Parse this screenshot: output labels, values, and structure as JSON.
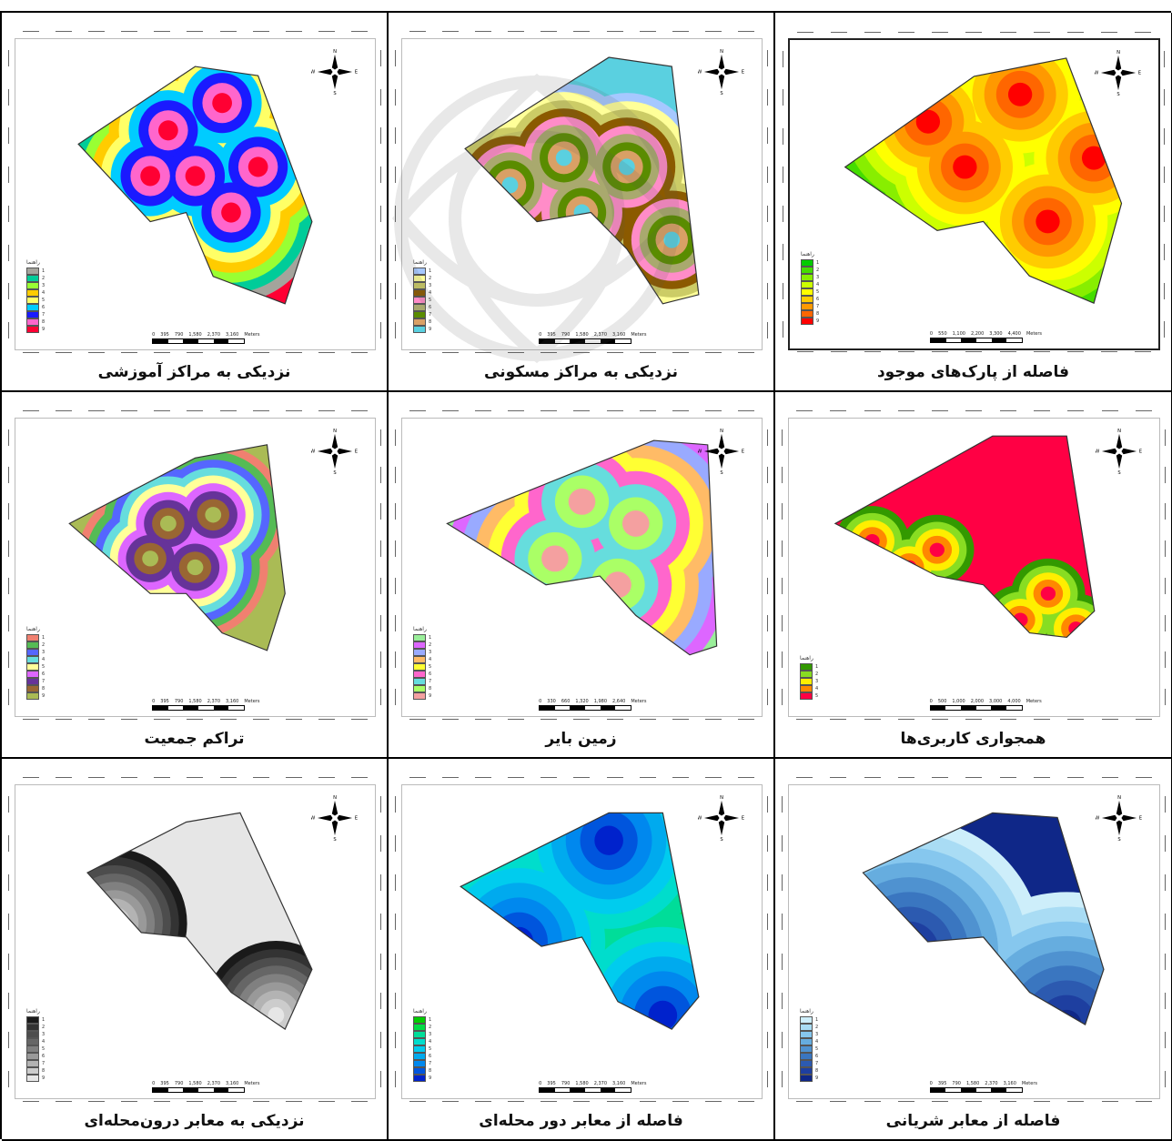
{
  "colors": {
    "education": [
      "#a4a49c",
      "#00cc99",
      "#99ff33",
      "#ffcc00",
      "#ffff66",
      "#00ccff",
      "#1a1aff",
      "#ff66cc",
      "#ff0033"
    ],
    "residential": [
      "#a6c8ff",
      "#ffff99",
      "#cccc66",
      "#8b5a00",
      "#ff8cc8",
      "#a9a96e",
      "#5a8c00",
      "#d9a066",
      "#5ad0e0"
    ],
    "parks": [
      "#00cc00",
      "#44dd00",
      "#88ee00",
      "#ccff00",
      "#ffff00",
      "#ffcc00",
      "#ff9900",
      "#ff6600",
      "#ff0000"
    ],
    "population": [
      "#f08070",
      "#55bb55",
      "#5566ff",
      "#66dddd",
      "#ffff99",
      "#dd66ff",
      "#663399",
      "#996633",
      "#aabb55"
    ],
    "vacant": [
      "#99ee99",
      "#dd66ff",
      "#99aaff",
      "#ffbb66",
      "#ffff33",
      "#ff66cc",
      "#66dddd",
      "#aaff66",
      "#f4a0a0"
    ],
    "landuse": [
      "#339900",
      "#88dd22",
      "#ffee00",
      "#ff8800",
      "#ff0044"
    ],
    "grayscale": [
      "#1a1a1a",
      "#333333",
      "#4d4d4d",
      "#666666",
      "#808080",
      "#999999",
      "#b3b3b3",
      "#cccccc",
      "#e6e6e6"
    ],
    "local_roads": [
      "#00cc00",
      "#00dd44",
      "#00dd99",
      "#00ddcc",
      "#00ccee",
      "#00aaee",
      "#0088ee",
      "#0055dd",
      "#0022cc"
    ],
    "arterial": [
      "#cdeefa",
      "#a9dcf4",
      "#86c7ee",
      "#66addf",
      "#4f92d0",
      "#3a76c0",
      "#2c5ab0",
      "#1e3fa0",
      "#0f2788"
    ]
  },
  "cells": [
    {
      "caption": "فاصله از پارک‌های موجود",
      "legend_title": "راهنما",
      "legend_items": [
        "1",
        "2",
        "3",
        "4",
        "5",
        "6",
        "7",
        "8",
        "9"
      ],
      "scale_labels": [
        "0",
        "550",
        "1,100",
        "2,200",
        "3,300",
        "4,400"
      ],
      "scale_unit": "Meters",
      "compass_icon": "north-arrow-icon"
    },
    {
      "caption": "نزدیکی به مراکز مسکونی",
      "legend_title": "راهنما",
      "legend_items": [
        "1",
        "2",
        "3",
        "4",
        "5",
        "6",
        "7",
        "8",
        "9"
      ],
      "scale_labels": [
        "0",
        "395",
        "790",
        "1,580",
        "2,370",
        "3,160"
      ],
      "scale_unit": "Meters",
      "compass_icon": "north-arrow-icon"
    },
    {
      "caption": "نزدیکی به مراکز آموزشی",
      "legend_title": "راهنما",
      "legend_items": [
        "1",
        "2",
        "3",
        "4",
        "5",
        "6",
        "7",
        "8",
        "9"
      ],
      "scale_labels": [
        "0",
        "395",
        "790",
        "1,580",
        "2,370",
        "3,160"
      ],
      "scale_unit": "Meters",
      "compass_icon": "north-arrow-icon"
    },
    {
      "caption": "همجواری کاربری‌ها",
      "legend_title": "راهنما",
      "legend_items": [
        "1",
        "2",
        "3",
        "4",
        "5"
      ],
      "scale_labels": [
        "0",
        "500",
        "1,000",
        "2,000",
        "3,000",
        "4,000"
      ],
      "scale_unit": "Meters",
      "compass_icon": "north-arrow-icon"
    },
    {
      "caption": "زمین بایر",
      "legend_title": "راهنما",
      "legend_items": [
        "1",
        "2",
        "3",
        "4",
        "5",
        "6",
        "7",
        "8",
        "9"
      ],
      "scale_labels": [
        "0",
        "330",
        "660",
        "1,320",
        "1,980",
        "2,640"
      ],
      "scale_unit": "Meters",
      "compass_icon": "north-arrow-icon"
    },
    {
      "caption": "تراکم جمعیت",
      "legend_title": "راهنما",
      "legend_items": [
        "1",
        "2",
        "3",
        "4",
        "5",
        "6",
        "7",
        "8",
        "9"
      ],
      "scale_labels": [
        "0",
        "395",
        "790",
        "1,580",
        "2,370",
        "3,160"
      ],
      "scale_unit": "Meters",
      "compass_icon": "north-arrow-icon"
    },
    {
      "caption": "فاصله از معابر شریانی",
      "legend_title": "راهنما",
      "legend_items": [
        "1",
        "2",
        "3",
        "4",
        "5",
        "6",
        "7",
        "8",
        "9"
      ],
      "scale_labels": [
        "0",
        "395",
        "790",
        "1,580",
        "2,370",
        "3,160"
      ],
      "scale_unit": "Meters",
      "compass_icon": "north-arrow-icon"
    },
    {
      "caption": "فاصله از معابر دور محله‌ای",
      "legend_title": "راهنما",
      "legend_items": [
        "1",
        "2",
        "3",
        "4",
        "5",
        "6",
        "7",
        "8",
        "9"
      ],
      "scale_labels": [
        "0",
        "395",
        "790",
        "1,580",
        "2,370",
        "3,160"
      ],
      "scale_unit": "Meters",
      "compass_icon": "north-arrow-icon"
    },
    {
      "caption": "نزدیکی به معابر درون‌محله‌ای",
      "legend_title": "راهنما",
      "legend_items": [
        "1",
        "2",
        "3",
        "4",
        "5",
        "6",
        "7",
        "8",
        "9"
      ],
      "scale_labels": [
        "0",
        "395",
        "790",
        "1,580",
        "2,370",
        "3,160"
      ],
      "scale_unit": "Meters",
      "compass_icon": "north-arrow-icon"
    }
  ],
  "compass_letters": {
    "n": "N",
    "s": "S",
    "e": "E",
    "w": "W"
  }
}
